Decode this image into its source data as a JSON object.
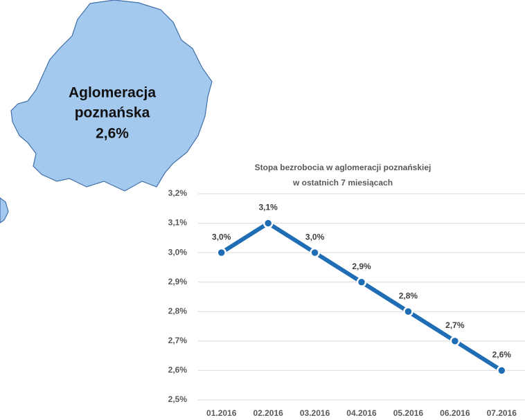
{
  "chart_data": {
    "type": "line",
    "title": [
      "Stopa bezrobocia w aglomeracji poznańskiej",
      "w ostatnich 7 miesiącach"
    ],
    "annotation": [
      "Aglomeracja",
      "poznańska",
      "2,6%"
    ],
    "categories": [
      "01.2016",
      "02.2016",
      "03.2016",
      "04.2016",
      "05.2016",
      "06.2016",
      "07.2016"
    ],
    "values": [
      3.0,
      3.1,
      3.0,
      2.9,
      2.8,
      2.7,
      2.6
    ],
    "value_labels": [
      "3,0%",
      "3,1%",
      "3,0%",
      "2,9%",
      "2,8%",
      "2,7%",
      "2,6%"
    ],
    "color": "#1f6db4",
    "ylim": [
      2.5,
      3.2
    ],
    "yticks": [
      {
        "value": 2.5,
        "label": "2,5%"
      },
      {
        "value": 2.6,
        "label": "2,6%"
      },
      {
        "value": 2.7,
        "label": "2,7%"
      },
      {
        "value": 2.8,
        "label": "2,8%"
      },
      {
        "value": 2.9,
        "label": "2,9%"
      },
      {
        "value": 3.0,
        "label": "3,0%"
      },
      {
        "value": 3.1,
        "label": "3,1%"
      },
      {
        "value": 3.2,
        "label": "3,2%"
      }
    ],
    "grid": true
  }
}
